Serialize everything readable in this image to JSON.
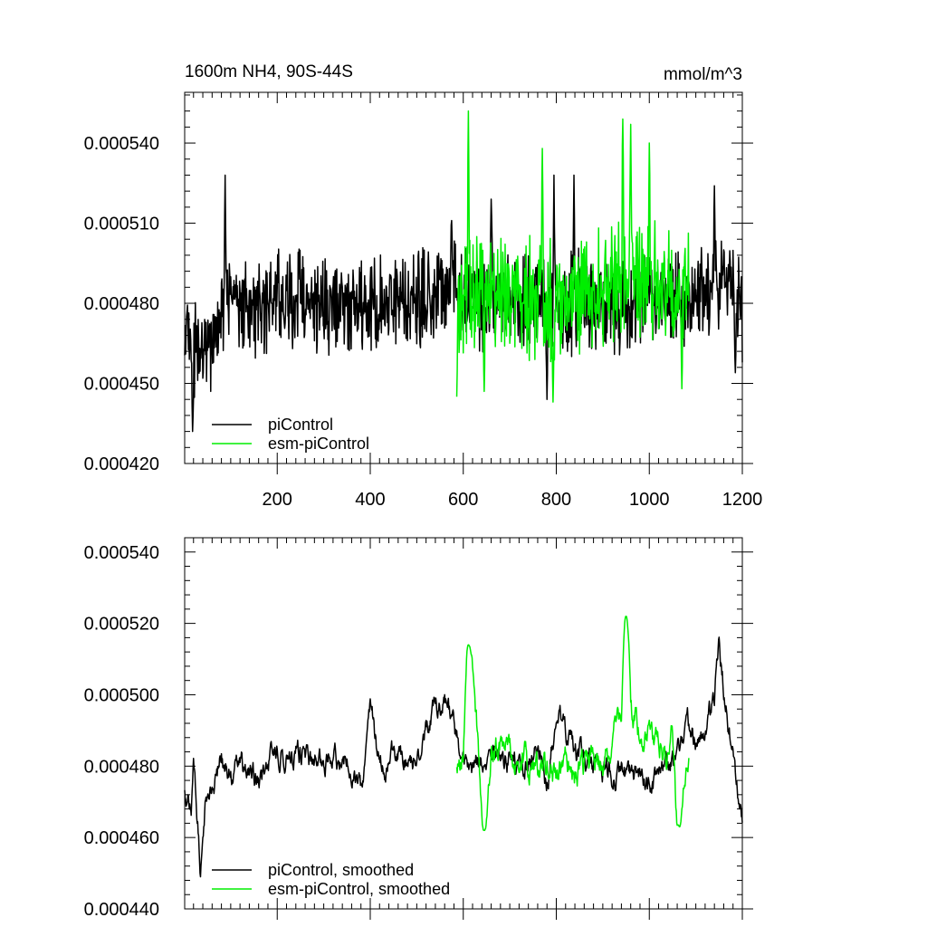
{
  "colors": {
    "piControl": "#000000",
    "esmPiControl": "#00ee00",
    "axis": "#000000",
    "background": "#ffffff"
  },
  "chart_data": [
    {
      "id": "raw",
      "type": "line",
      "title": "1600m NH4, 90S-44S",
      "units": "mmol/m^3",
      "xlim": [
        1,
        1200
      ],
      "ylim": [
        0.00042,
        0.000559
      ],
      "x_ticks": [
        200,
        400,
        600,
        800,
        1000,
        1200
      ],
      "x_tick_labels": [
        "200",
        "400",
        "600",
        "800",
        "1000",
        "1200"
      ],
      "y_ticks": [
        0.00042,
        0.00045,
        0.00048,
        0.00051,
        0.00054
      ],
      "y_tick_labels": [
        "0.000420",
        "0.000450",
        "0.000480",
        "0.000510",
        "0.000540"
      ],
      "legend_position": "bottom-left",
      "series": [
        {
          "name": "piControl",
          "color": "#000000",
          "x_start": 1,
          "x_end": 1200,
          "anchor_x": [
            1,
            40,
            80,
            120,
            160,
            200,
            240,
            280,
            320,
            360,
            400,
            440,
            480,
            520,
            560,
            580,
            600,
            640,
            680,
            720,
            760,
            800,
            840,
            880,
            920,
            960,
            1000,
            1040,
            1080,
            1120,
            1160,
            1200
          ],
          "anchor_y": [
            0.000466,
            0.000462,
            0.000476,
            0.00048,
            0.000478,
            0.000482,
            0.000483,
            0.00048,
            0.000479,
            0.000481,
            0.000478,
            0.00048,
            0.000481,
            0.000482,
            0.000486,
            0.000488,
            0.000482,
            0.00048,
            0.000481,
            0.000483,
            0.000484,
            0.000479,
            0.000481,
            0.00048,
            0.000478,
            0.00048,
            0.000482,
            0.000481,
            0.00048,
            0.000486,
            0.000486,
            0.000478
          ],
          "noise_amplitude": 1.35e-05,
          "seed": 11,
          "peaks": [
            [
              18,
              0.000432
            ],
            [
              88,
              0.000528
            ],
            [
              233,
              0.000463
            ],
            [
              575,
              0.000511
            ],
            [
              660,
              0.000519
            ],
            [
              780,
              0.000444
            ],
            [
              795,
              0.000528
            ],
            [
              838,
              0.000528
            ],
            [
              1140,
              0.000524
            ],
            [
              1185,
              0.000454
            ],
            [
              1160,
              0.0005
            ]
          ]
        },
        {
          "name": "esm-piControl",
          "color": "#00ee00",
          "x_start": 586,
          "x_end": 1085,
          "anchor_x": [
            586,
            640,
            700,
            760,
            820,
            880,
            940,
            1000,
            1040,
            1085
          ],
          "anchor_y": [
            0.000482,
            0.000482,
            0.000483,
            0.000481,
            0.00048,
            0.000486,
            0.000492,
            0.000487,
            0.000486,
            0.000481
          ],
          "noise_amplitude": 1.65e-05,
          "seed": 23,
          "peaks": [
            [
              586,
              0.000445
            ],
            [
              611,
              0.000552
            ],
            [
              645,
              0.000447
            ],
            [
              770,
              0.000538
            ],
            [
              793,
              0.000443
            ],
            [
              943,
              0.000549
            ],
            [
              960,
              0.000547
            ],
            [
              1000,
              0.00054
            ],
            [
              1070,
              0.000448
            ]
          ]
        }
      ]
    },
    {
      "id": "smoothed",
      "type": "line",
      "xlim": [
        1,
        1200
      ],
      "ylim": [
        0.00044,
        0.000544
      ],
      "y_ticks": [
        0.00044,
        0.00046,
        0.00048,
        0.0005,
        0.00052,
        0.00054
      ],
      "y_tick_labels": [
        "0.000440",
        "0.000460",
        "0.000480",
        "0.000500",
        "0.000520",
        "0.000540"
      ],
      "legend_position": "bottom-left",
      "series": [
        {
          "name": "piControl, smoothed",
          "color": "#000000",
          "x_start": 1,
          "x_end": 1200,
          "anchor_x": [
            1,
            15,
            20,
            28,
            35,
            45,
            60,
            80,
            100,
            130,
            160,
            200,
            240,
            280,
            320,
            360,
            380,
            400,
            420,
            460,
            500,
            540,
            560,
            580,
            600,
            640,
            680,
            720,
            760,
            780,
            800,
            840,
            880,
            920,
            960,
            1000,
            1040,
            1060,
            1080,
            1100,
            1120,
            1140,
            1150,
            1160,
            1180,
            1200
          ],
          "anchor_y": [
            0.000472,
            0.00047,
            0.000483,
            0.000468,
            0.000452,
            0.000468,
            0.000474,
            0.000481,
            0.000478,
            0.00048,
            0.000476,
            0.000484,
            0.000484,
            0.00048,
            0.000482,
            0.00048,
            0.000472,
            0.000496,
            0.00048,
            0.000484,
            0.000481,
            0.000496,
            0.0005,
            0.00049,
            0.000482,
            0.000481,
            0.000482,
            0.000479,
            0.000484,
            0.000476,
            0.000496,
            0.000484,
            0.00048,
            0.000479,
            0.000477,
            0.000475,
            0.000478,
            0.000484,
            0.000494,
            0.000486,
            0.000488,
            0.0005,
            0.000514,
            0.000502,
            0.000484,
            0.000465
          ],
          "noise_amplitude": 5.5e-06,
          "seed": 37,
          "smooth": true,
          "peaks": []
        },
        {
          "name": "esm-piControl, smoothed",
          "color": "#00ee00",
          "x_start": 586,
          "x_end": 1085,
          "anchor_x": [
            586,
            600,
            611,
            630,
            645,
            660,
            680,
            700,
            740,
            760,
            780,
            800,
            820,
            850,
            880,
            900,
            920,
            940,
            950,
            960,
            980,
            1000,
            1020,
            1050,
            1060,
            1070,
            1085
          ],
          "anchor_y": [
            0.000482,
            0.000478,
            0.000514,
            0.00049,
            0.000462,
            0.000482,
            0.000486,
            0.000484,
            0.00048,
            0.000476,
            0.00048,
            0.000476,
            0.000481,
            0.000478,
            0.000484,
            0.00048,
            0.000488,
            0.000492,
            0.000522,
            0.000495,
            0.000488,
            0.00049,
            0.000484,
            0.000487,
            0.000463,
            0.000478,
            0.000481
          ],
          "noise_amplitude": 6.5e-06,
          "seed": 53,
          "smooth": true,
          "peaks": [
            [
              611,
              0.000514
            ],
            [
              645,
              0.000462
            ],
            [
              950,
              0.000522
            ],
            [
              1065,
              0.000463
            ]
          ]
        }
      ]
    }
  ]
}
